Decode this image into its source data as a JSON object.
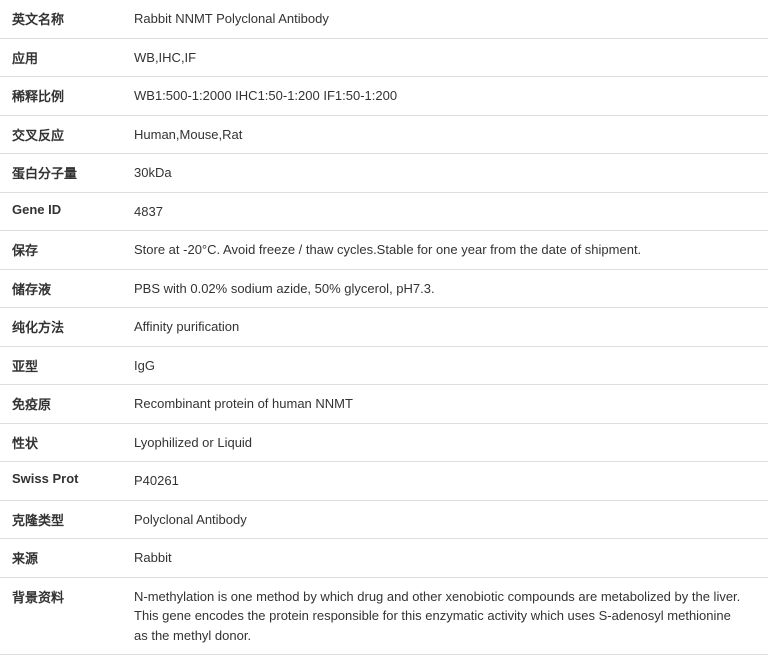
{
  "table": {
    "background_color": "#ffffff",
    "text_color": "#333333",
    "border_color": "#dddddd",
    "label_fontsize": 13,
    "value_fontsize": 13,
    "label_fontweight": "bold",
    "label_width": 130,
    "rows": [
      {
        "label": "英文名称",
        "value": "Rabbit NNMT Polyclonal Antibody"
      },
      {
        "label": "应用",
        "value": "WB,IHC,IF"
      },
      {
        "label": "稀释比例",
        "value": "WB1:500-1:2000 IHC1:50-1:200 IF1:50-1:200"
      },
      {
        "label": "交叉反应",
        "value": "Human,Mouse,Rat"
      },
      {
        "label": "蛋白分子量",
        "value": "30kDa"
      },
      {
        "label": "Gene ID",
        "value": "4837"
      },
      {
        "label": "保存",
        "value": "Store at -20°C. Avoid freeze / thaw cycles.Stable for one year from the date of shipment."
      },
      {
        "label": "储存液",
        "value": "PBS with 0.02% sodium azide, 50% glycerol, pH7.3."
      },
      {
        "label": "纯化方法",
        "value": "Affinity purification"
      },
      {
        "label": "亚型",
        "value": "IgG"
      },
      {
        "label": "免疫原",
        "value": "Recombinant protein of human NNMT"
      },
      {
        "label": "性状",
        "value": "Lyophilized or Liquid"
      },
      {
        "label": "Swiss Prot",
        "value": "P40261"
      },
      {
        "label": "克隆类型",
        "value": "Polyclonal Antibody"
      },
      {
        "label": "来源",
        "value": "Rabbit"
      },
      {
        "label": "背景资料",
        "value": "N-methylation is one method by which drug and other xenobiotic compounds are metabolized by the liver. This gene encodes the protein responsible for this enzymatic activity which uses S-adenosyl methionine as the methyl donor."
      }
    ]
  }
}
